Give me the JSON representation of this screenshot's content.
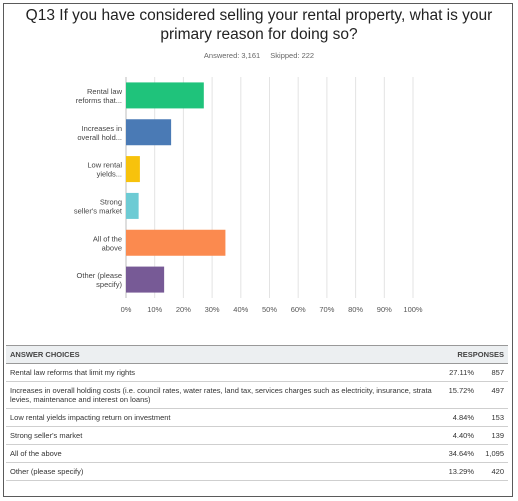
{
  "question": "Q13 If you have considered selling your rental property, what is your\nprimary reason for doing so?",
  "stats": {
    "answered": "Answered: 3,161",
    "skipped": "Skipped: 222"
  },
  "chart_data": {
    "type": "bar",
    "orientation": "horizontal",
    "categories": [
      [
        "Rental law",
        "reforms that..."
      ],
      [
        "Increases in",
        "overall hold..."
      ],
      [
        "Low rental",
        "yields..."
      ],
      [
        "Strong",
        "seller's market"
      ],
      [
        "All of the",
        "above"
      ],
      [
        "Other (please",
        "specify)"
      ]
    ],
    "values": [
      27.11,
      15.72,
      4.84,
      4.4,
      34.64,
      13.29
    ],
    "colors": [
      "#1fc37b",
      "#4a7ab5",
      "#f7c20c",
      "#6dcbd4",
      "#fb8a4f",
      "#775a96"
    ],
    "xticks": [
      "0%",
      "10%",
      "20%",
      "30%",
      "40%",
      "50%",
      "60%",
      "70%",
      "80%",
      "90%",
      "100%"
    ],
    "xlim": [
      0,
      100
    ],
    "grid": true
  },
  "table": {
    "headers": {
      "choices": "ANSWER CHOICES",
      "responses": "RESPONSES"
    },
    "rows": [
      {
        "label": "Rental law reforms that limit my rights",
        "pct": "27.11%",
        "count": "857"
      },
      {
        "label": "Increases in overall holding costs (i.e. council rates, water rates, land tax, services charges such as electricity, insurance, strata levies, maintenance and interest on loans)",
        "pct": "15.72%",
        "count": "497"
      },
      {
        "label": "Low rental yields impacting return on investment",
        "pct": "4.84%",
        "count": "153"
      },
      {
        "label": "Strong seller's market",
        "pct": "4.40%",
        "count": "139"
      },
      {
        "label": "All of the above",
        "pct": "34.64%",
        "count": "1,095"
      },
      {
        "label": "Other (please specify)",
        "pct": "13.29%",
        "count": "420"
      }
    ]
  }
}
